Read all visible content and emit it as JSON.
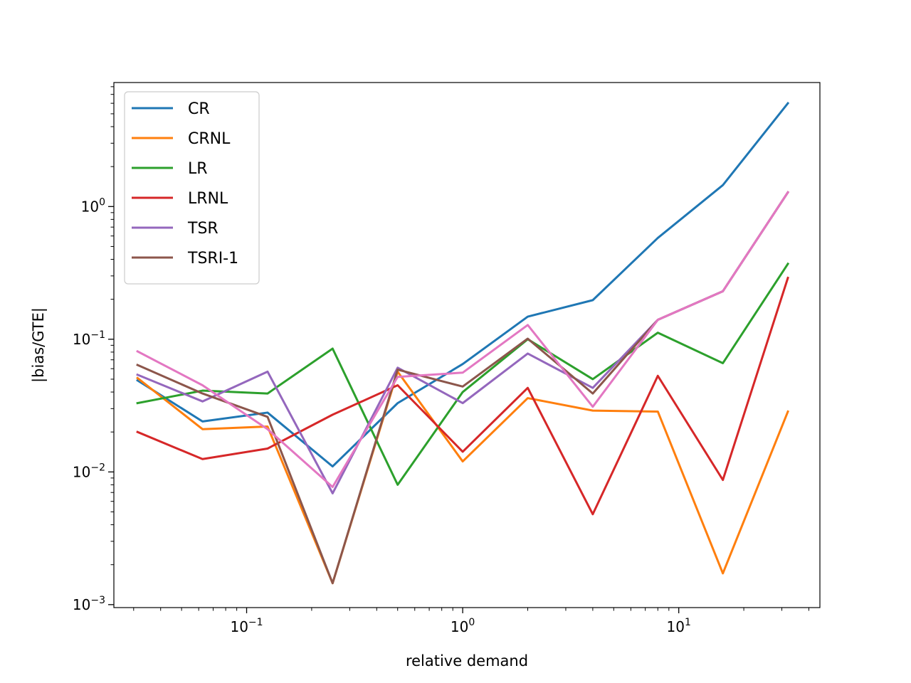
{
  "chart_data": {
    "type": "line",
    "title": "",
    "xlabel": "relative demand",
    "ylabel": "|bias/GTE|",
    "xscale": "log",
    "yscale": "log",
    "xlim": [
      0.0243,
      45.0
    ],
    "ylim": [
      0.00095,
      8.6
    ],
    "grid": false,
    "legend_position": "top-left",
    "x": [
      0.03125,
      0.0625,
      0.125,
      0.25,
      0.5,
      1,
      2,
      4,
      8,
      16,
      32
    ],
    "x_ticks": [
      {
        "value": 0.1,
        "base": "10",
        "exp": "−1"
      },
      {
        "value": 1,
        "base": "10",
        "exp": "0"
      },
      {
        "value": 10,
        "base": "10",
        "exp": "1"
      }
    ],
    "y_ticks": [
      {
        "value": 0.001,
        "base": "10",
        "exp": "−3"
      },
      {
        "value": 0.01,
        "base": "10",
        "exp": "−2"
      },
      {
        "value": 0.1,
        "base": "10",
        "exp": "−1"
      },
      {
        "value": 1,
        "base": "10",
        "exp": "0"
      }
    ],
    "series": [
      {
        "name": "CR",
        "color": "#1f77b4",
        "in_legend": true,
        "values": [
          0.049,
          0.024,
          0.028,
          0.011,
          0.033,
          0.065,
          0.148,
          0.197,
          0.58,
          1.45,
          6.0
        ]
      },
      {
        "name": "CRNL",
        "color": "#ff7f0e",
        "in_legend": true,
        "values": [
          0.051,
          0.021,
          0.022,
          0.00145,
          0.057,
          0.012,
          0.036,
          0.029,
          0.0285,
          0.00172,
          0.0285
        ]
      },
      {
        "name": "LR",
        "color": "#2ca02c",
        "in_legend": true,
        "values": [
          0.033,
          0.041,
          0.039,
          0.085,
          0.008,
          0.04,
          0.1,
          0.05,
          0.112,
          0.066,
          0.37
        ]
      },
      {
        "name": "LRNL",
        "color": "#d62728",
        "in_legend": true,
        "values": [
          0.02,
          0.0125,
          0.015,
          0.027,
          0.045,
          0.0142,
          0.043,
          0.0048,
          0.053,
          0.0087,
          0.29
        ]
      },
      {
        "name": "TSR",
        "color": "#9467bd",
        "in_legend": true,
        "values": [
          0.054,
          0.034,
          0.057,
          0.0069,
          0.061,
          0.033,
          0.078,
          0.043,
          0.14,
          0.23,
          1.28
        ]
      },
      {
        "name": "TSRI-1",
        "color": "#8c564b",
        "in_legend": true,
        "values": [
          0.064,
          0.039,
          0.026,
          0.00145,
          0.059,
          0.044,
          0.101,
          0.039,
          0.14,
          0.23,
          1.28
        ]
      },
      {
        "name": "",
        "color": "#e377c2",
        "in_legend": false,
        "values": [
          0.081,
          0.045,
          0.021,
          0.0077,
          0.052,
          0.056,
          0.128,
          0.031,
          0.14,
          0.23,
          1.28
        ]
      }
    ]
  }
}
